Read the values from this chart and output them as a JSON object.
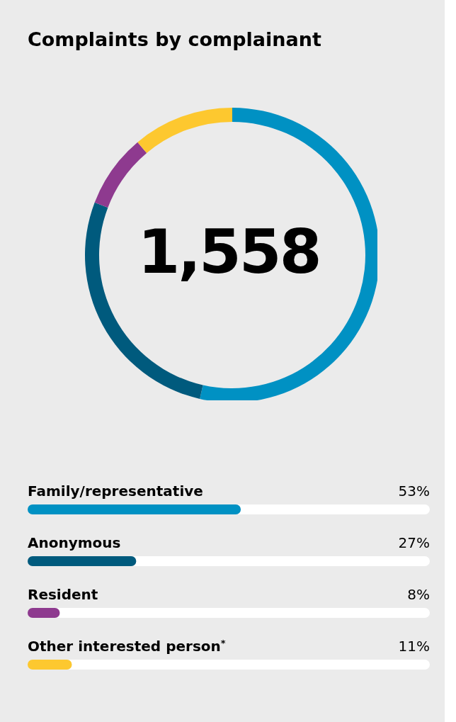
{
  "chart_data": [
    {
      "type": "donut",
      "title": "Complaints by complainant",
      "categories": [
        null,
        null,
        null,
        null
      ],
      "values": [
        53,
        27,
        8,
        11
      ],
      "colors": [
        "#0091c3",
        "#005a7d",
        "#8e3a8f",
        "#fdc82f"
      ],
      "annotations": [
        "1,558"
      ]
    },
    {
      "type": "bar",
      "orientation": "horizontal",
      "categories": [
        "Family/representative",
        "Anonymous",
        "Resident",
        "Other interested person$^{*}$"
      ],
      "values": [
        53,
        27,
        8,
        11
      ],
      "colors": [
        "#0091c3",
        "#005a7d",
        "#8e3a8f",
        "#fdc82f"
      ],
      "value_labels": [
        "53%",
        "27%",
        "8%",
        "11%"
      ],
      "xlim": [
        0,
        100
      ],
      "tick_labels": "y"
    }
  ]
}
